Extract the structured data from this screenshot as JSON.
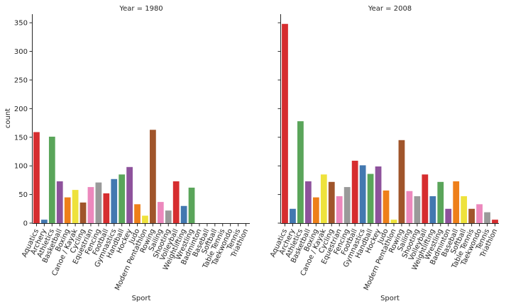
{
  "chart_data": {
    "type": "bar",
    "facet_label": "Year",
    "xlabel": "Sport",
    "ylabel": "count",
    "ylim": [
      0,
      365
    ],
    "yticks": [
      0,
      50,
      100,
      150,
      200,
      250,
      300,
      350
    ],
    "categories": [
      "Aquatics",
      "Archery",
      "Athletics",
      "Basketball",
      "Boxing",
      "Canoe / Kayak",
      "Cycling",
      "Equestrian",
      "Fencing",
      "Football",
      "Gymnastics",
      "Handball",
      "Hockey",
      "Judo",
      "Modern Pentathlon",
      "Rowing",
      "Sailing",
      "Shooting",
      "Volleyball",
      "Weightlifting",
      "Wrestling",
      "Badminton",
      "Baseball",
      "Softball",
      "Table Tennis",
      "Taekwondo",
      "Tennis",
      "Triathlon"
    ],
    "colors": [
      "#d62d2f",
      "#4378b0",
      "#5aa55a",
      "#8e529c",
      "#ee7f1a",
      "#eee23c",
      "#a0552b",
      "#ec88bd",
      "#9a9a9a",
      "#d62d2f",
      "#4378b0",
      "#5aa55a",
      "#8e529c",
      "#ee7f1a",
      "#eee23c",
      "#a0552b",
      "#ec88bd",
      "#9a9a9a",
      "#d62d2f",
      "#4378b0",
      "#5aa55a",
      "#8e529c",
      "#ee7f1a",
      "#eee23c",
      "#a0552b",
      "#ec88bd",
      "#9a9a9a",
      "#d62d2f"
    ],
    "panels": [
      {
        "title": "Year = 1980",
        "values": [
          159,
          6,
          151,
          73,
          45,
          58,
          36,
          63,
          71,
          52,
          77,
          85,
          98,
          33,
          13,
          163,
          37,
          22,
          73,
          30,
          62,
          0,
          0,
          0,
          0,
          0,
          0,
          0
        ]
      },
      {
        "title": "Year = 2008",
        "values": [
          348,
          25,
          178,
          73,
          45,
          85,
          72,
          47,
          63,
          109,
          101,
          86,
          99,
          57,
          6,
          145,
          56,
          47,
          85,
          47,
          72,
          25,
          73,
          47,
          25,
          33,
          19,
          6
        ]
      }
    ]
  }
}
